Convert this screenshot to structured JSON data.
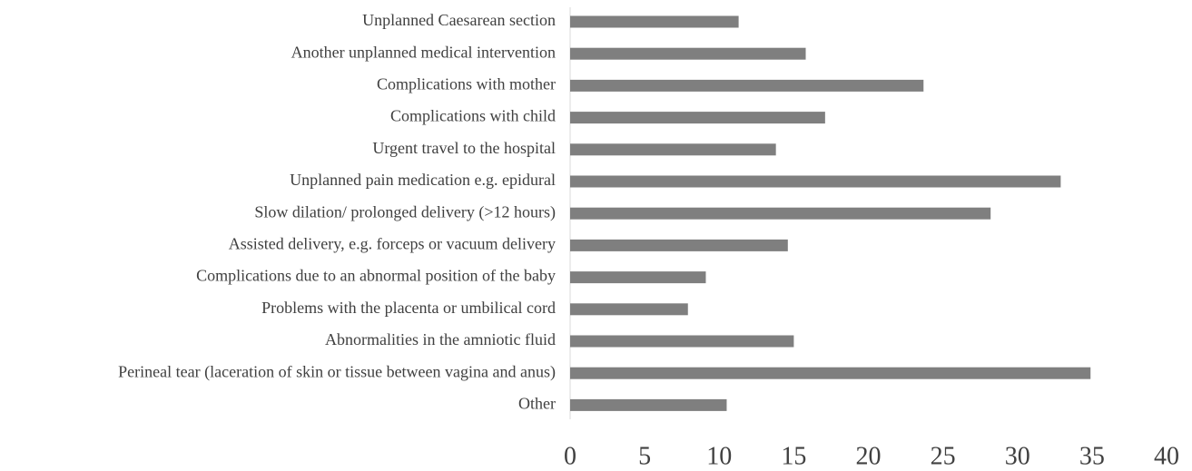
{
  "chart_data": {
    "type": "barh",
    "categories": [
      "Unplanned Caesarean section",
      "Another unplanned medical intervention",
      "Complications with mother",
      "Complications with child",
      "Urgent travel to the hospital",
      "Unplanned pain medication e.g. epidural",
      "Slow dilation/ prolonged delivery (>12 hours)",
      "Assisted delivery, e.g. forceps or vacuum delivery",
      "Complications due to an abnormal position of the baby",
      "Problems with the placenta or umbilical cord",
      "Abnormalities in the amniotic fluid",
      "Perineal tear (laceration of skin or tissue between vagina and anus)",
      "Other"
    ],
    "values": [
      11.3,
      15.8,
      23.7,
      17.1,
      13.8,
      32.9,
      28.2,
      14.6,
      9.1,
      7.9,
      15.0,
      34.9,
      10.5
    ],
    "color": "#7f7f7f",
    "xlim": [
      0,
      40
    ],
    "xticks": [
      0,
      5,
      10,
      15,
      20,
      25,
      30,
      35,
      40
    ],
    "grid": false
  }
}
